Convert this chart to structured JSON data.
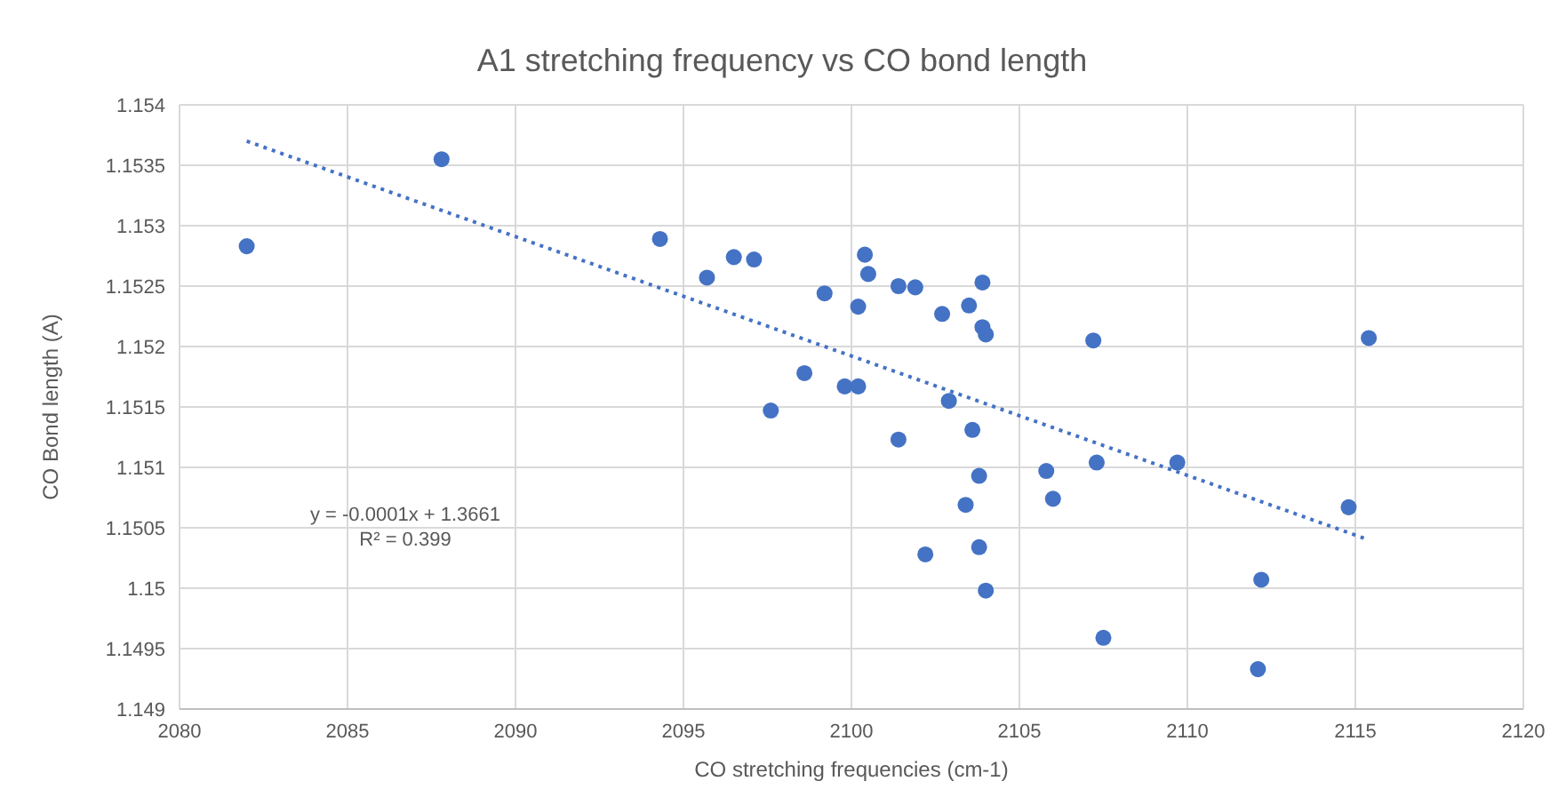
{
  "chart_data": {
    "type": "scatter",
    "title": "A1 stretching frequency vs  CO bond length",
    "xlabel": "CO stretching frequencies (cm-1)",
    "ylabel": "CO Bond length (A)",
    "annotations": [
      "y = -0.0001x + 1.3661",
      "R² = 0.399"
    ],
    "xlim": [
      2080,
      2120
    ],
    "xticks": [
      2080,
      2085,
      2090,
      2095,
      2100,
      2105,
      2110,
      2115,
      2120
    ],
    "ylim": [
      1.149,
      1.154
    ],
    "yticks": [
      1.149,
      1.1495,
      1.15,
      1.1505,
      1.151,
      1.1515,
      1.152,
      1.1525,
      1.153,
      1.1535,
      1.154
    ],
    "grid": true,
    "series": [
      {
        "color": "#4472c4",
        "marker": "circle",
        "x": [
          2082.0,
          2087.8,
          2094.3,
          2095.7,
          2096.5,
          2097.1,
          2099.2,
          2100.4,
          2100.5,
          2100.2,
          2101.4,
          2101.9,
          2103.9,
          2103.5,
          2102.7,
          2103.9,
          2104.0,
          2107.2,
          2098.6,
          2099.8,
          2100.2,
          2097.6,
          2102.9,
          2103.6,
          2101.4,
          2103.8,
          2105.8,
          2107.3,
          2106.0,
          2103.4,
          2103.8,
          2102.2,
          2104.0,
          2107.5,
          2109.7,
          2114.8,
          2115.4,
          2112.2,
          2112.1
        ],
        "values": [
          1.15283,
          1.15355,
          1.15289,
          1.15257,
          1.15274,
          1.15272,
          1.15244,
          1.15276,
          1.1526,
          1.15233,
          1.1525,
          1.15249,
          1.15253,
          1.15234,
          1.15227,
          1.15216,
          1.1521,
          1.15205,
          1.15178,
          1.15167,
          1.15167,
          1.15147,
          1.15155,
          1.15131,
          1.15123,
          1.15093,
          1.15097,
          1.15104,
          1.15074,
          1.15069,
          1.15034,
          1.15028,
          1.14998,
          1.14959,
          1.15104,
          1.15067,
          1.15207,
          1.15007,
          1.14933
        ]
      },
      {
        "type": "line",
        "color": "#4472c4",
        "marker": "none",
        "line_style": "dotted",
        "x": [
          2082,
          2115.4
        ],
        "values": [
          1.1537,
          1.1504
        ]
      }
    ]
  }
}
